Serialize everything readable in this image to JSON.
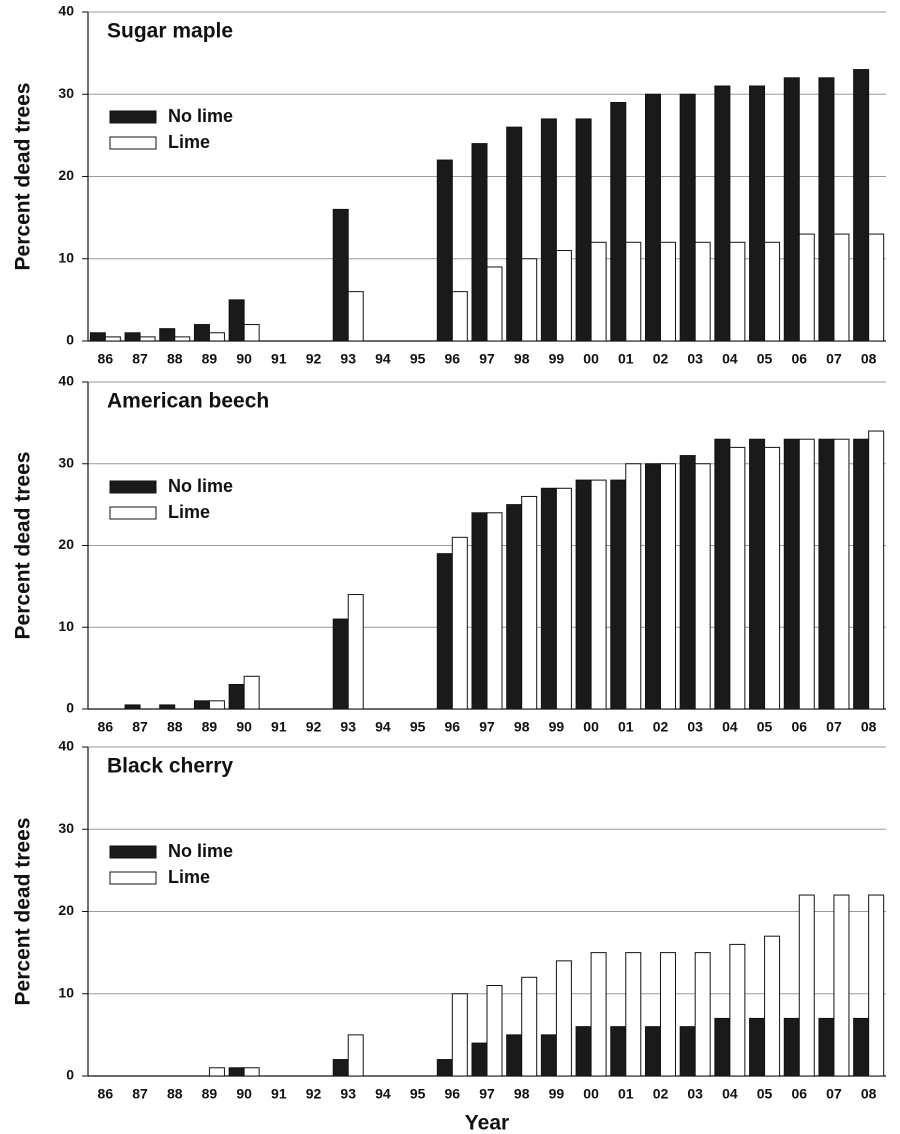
{
  "chart_data": [
    {
      "type": "bar",
      "title": "Sugar maple",
      "ylabel": "Percent dead trees",
      "categories": [
        "86",
        "87",
        "88",
        "89",
        "90",
        "91",
        "92",
        "93",
        "94",
        "95",
        "96",
        "97",
        "98",
        "99",
        "00",
        "01",
        "02",
        "03",
        "04",
        "05",
        "06",
        "07",
        "08"
      ],
      "series": [
        {
          "name": "No lime",
          "color": "#1a1a1a",
          "values": [
            1,
            1,
            1.5,
            2,
            5,
            0,
            0,
            16,
            0,
            0,
            22,
            24,
            26,
            27,
            27,
            29,
            30,
            30,
            31,
            31,
            32,
            32,
            33
          ]
        },
        {
          "name": "Lime",
          "color": "#ffffff",
          "values": [
            0.5,
            0.5,
            0.5,
            1,
            2,
            0,
            0,
            6,
            0,
            0,
            6,
            9,
            10,
            11,
            12,
            12,
            12,
            12,
            12,
            12,
            13,
            13,
            13
          ]
        }
      ],
      "ylim": [
        0,
        40
      ],
      "yticks": [
        0,
        10,
        20,
        30,
        40
      ],
      "grid": true,
      "legend": "upper left"
    },
    {
      "type": "bar",
      "title": "American beech",
      "ylabel": "Percent dead trees",
      "categories": [
        "86",
        "87",
        "88",
        "89",
        "90",
        "91",
        "92",
        "93",
        "94",
        "95",
        "96",
        "97",
        "98",
        "99",
        "00",
        "01",
        "02",
        "03",
        "04",
        "05",
        "06",
        "07",
        "08"
      ],
      "series": [
        {
          "name": "No lime",
          "color": "#1a1a1a",
          "values": [
            0,
            0.5,
            0.5,
            1,
            3,
            0,
            0,
            11,
            0,
            0,
            19,
            24,
            25,
            27,
            28,
            28,
            30,
            31,
            33,
            33,
            33,
            33,
            33
          ]
        },
        {
          "name": "Lime",
          "color": "#ffffff",
          "values": [
            0,
            0,
            0,
            1,
            4,
            0,
            0,
            14,
            0,
            0,
            21,
            24,
            26,
            27,
            28,
            30,
            30,
            30,
            32,
            32,
            33,
            33,
            34
          ]
        }
      ],
      "ylim": [
        0,
        40
      ],
      "yticks": [
        0,
        10,
        20,
        30,
        40
      ],
      "grid": true,
      "legend": "upper left"
    },
    {
      "type": "bar",
      "title": "Black cherry",
      "ylabel": "Percent dead trees",
      "xlabel": "Year",
      "categories": [
        "86",
        "87",
        "88",
        "89",
        "90",
        "91",
        "92",
        "93",
        "94",
        "95",
        "96",
        "97",
        "98",
        "99",
        "00",
        "01",
        "02",
        "03",
        "04",
        "05",
        "06",
        "07",
        "08"
      ],
      "series": [
        {
          "name": "No lime",
          "color": "#1a1a1a",
          "values": [
            0,
            0,
            0,
            0,
            1,
            0,
            0,
            2,
            0,
            0,
            2,
            4,
            5,
            5,
            6,
            6,
            6,
            6,
            7,
            7,
            7,
            7,
            7
          ]
        },
        {
          "name": "Lime",
          "color": "#ffffff",
          "values": [
            0,
            0,
            0,
            1,
            1,
            0,
            0,
            5,
            0,
            0,
            10,
            11,
            12,
            14,
            15,
            15,
            15,
            15,
            16,
            17,
            22,
            22,
            22
          ]
        }
      ],
      "ylim": [
        0,
        40
      ],
      "yticks": [
        0,
        10,
        20,
        30,
        40
      ],
      "grid": true,
      "legend": "upper left"
    }
  ]
}
